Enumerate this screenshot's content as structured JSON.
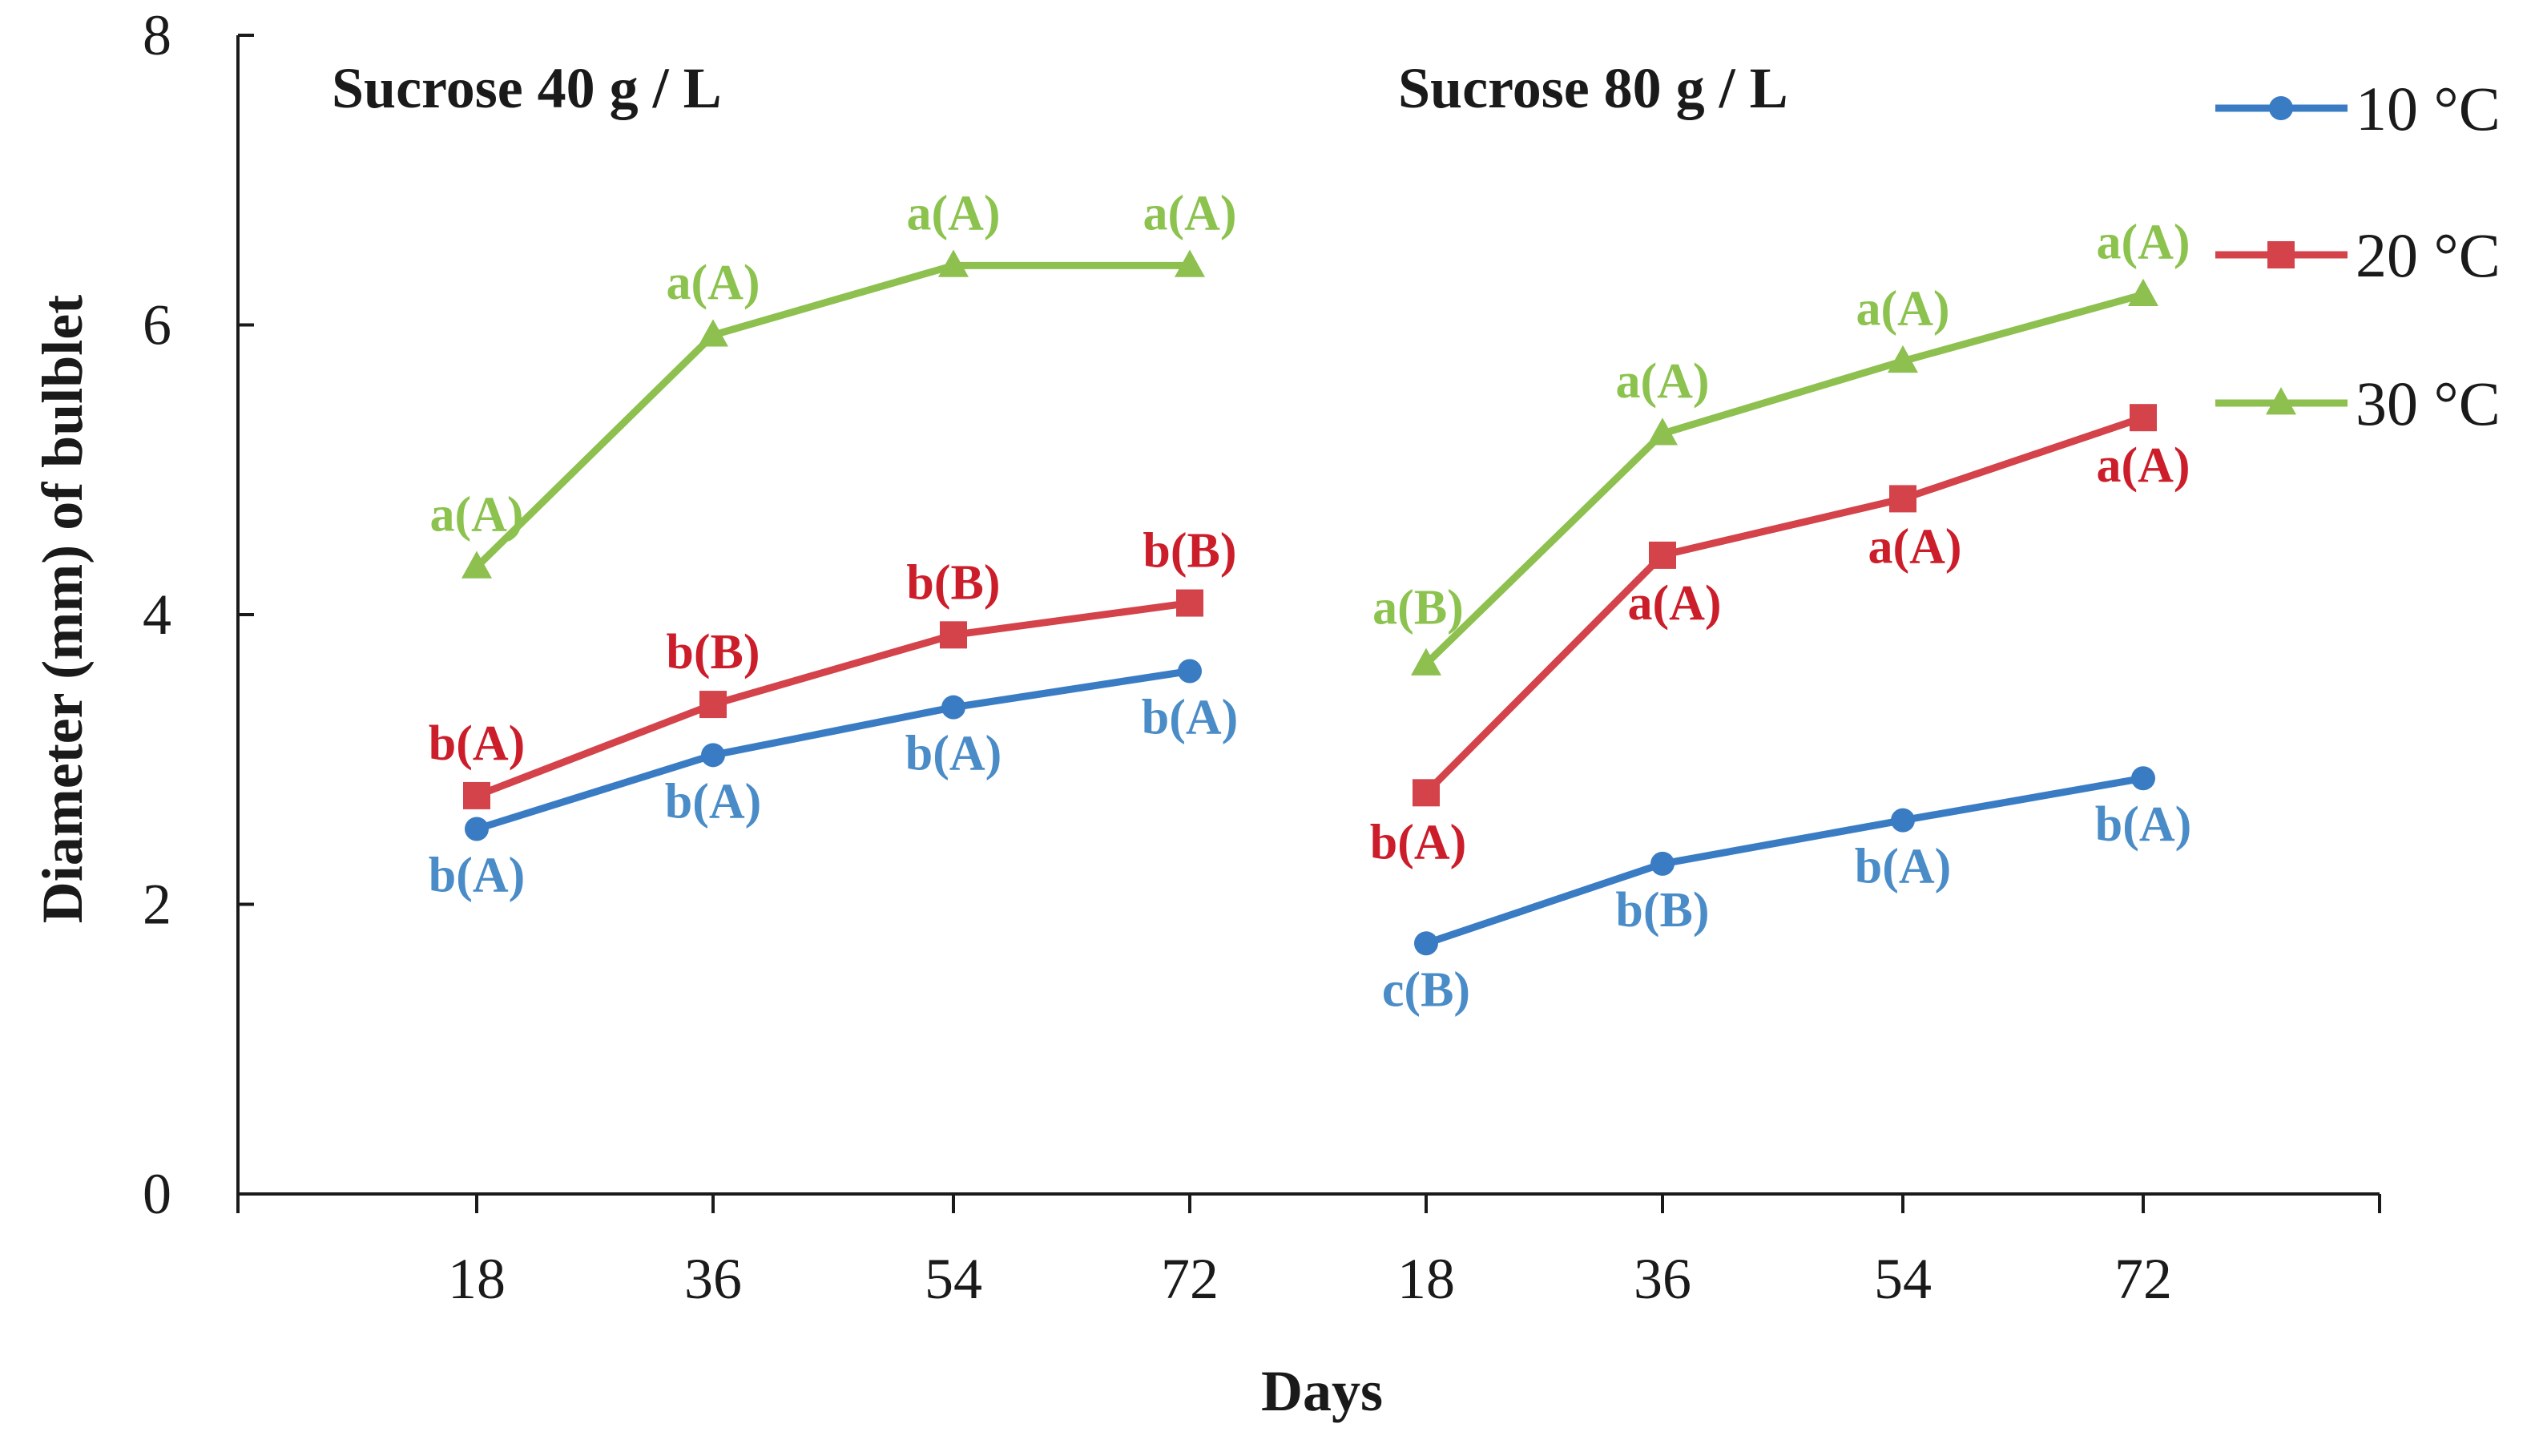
{
  "chart_data": {
    "type": "line",
    "ylabel": "Diameter  (mm) of bulblet",
    "xlabel": "Days",
    "ylim": [
      0,
      8
    ],
    "y_ticks": [
      "0",
      "2",
      "4",
      "6",
      "8"
    ],
    "grid": false,
    "legend_position": "top-right",
    "legend": [
      {
        "name": "10 °C",
        "color": "#3a7cc4",
        "marker": "circle"
      },
      {
        "name": "20 °C",
        "color": "#d4424a",
        "marker": "square"
      },
      {
        "name": "30 °C",
        "color": "#8dc04f",
        "marker": "triangle"
      }
    ],
    "label_colors": [
      "#4a8cc7",
      "#cc1e2a",
      "#8cc24e"
    ],
    "panels": [
      {
        "title": "Sucrose 40 g / L",
        "categories": [
          "18",
          "36",
          "54",
          "72"
        ],
        "series": [
          {
            "name": "10 °C",
            "values": [
              2.52,
              3.03,
              3.36,
              3.61
            ],
            "labels": [
              "b(A)",
              "b(A)",
              "b(A)",
              "b(A)"
            ]
          },
          {
            "name": "20 °C",
            "values": [
              2.75,
              3.38,
              3.86,
              4.08
            ],
            "labels": [
              "b(A)",
              "b(B)",
              "b(B)",
              "b(B)"
            ]
          },
          {
            "name": "30 °C",
            "values": [
              4.33,
              5.93,
              6.41,
              6.41
            ],
            "labels": [
              "a(A)",
              "a(A)",
              "a(A)",
              "a(A)"
            ]
          }
        ]
      },
      {
        "title": "Sucrose 80 g / L",
        "categories": [
          "18",
          "36",
          "54",
          "72"
        ],
        "series": [
          {
            "name": "10 °C",
            "values": [
              1.73,
              2.28,
              2.58,
              2.87
            ],
            "labels": [
              "c(B)",
              "b(B)",
              "b(A)",
              "b(A)"
            ]
          },
          {
            "name": "20 °C",
            "values": [
              2.77,
              4.41,
              4.8,
              5.36
            ],
            "labels": [
              "b(A)",
              "a(A)",
              "a(A)",
              "a(A)"
            ]
          },
          {
            "name": "30 °C",
            "values": [
              3.66,
              5.25,
              5.75,
              6.21
            ],
            "labels": [
              "a(B)",
              "a(A)",
              "a(A)",
              "a(A)"
            ]
          }
        ]
      }
    ]
  }
}
